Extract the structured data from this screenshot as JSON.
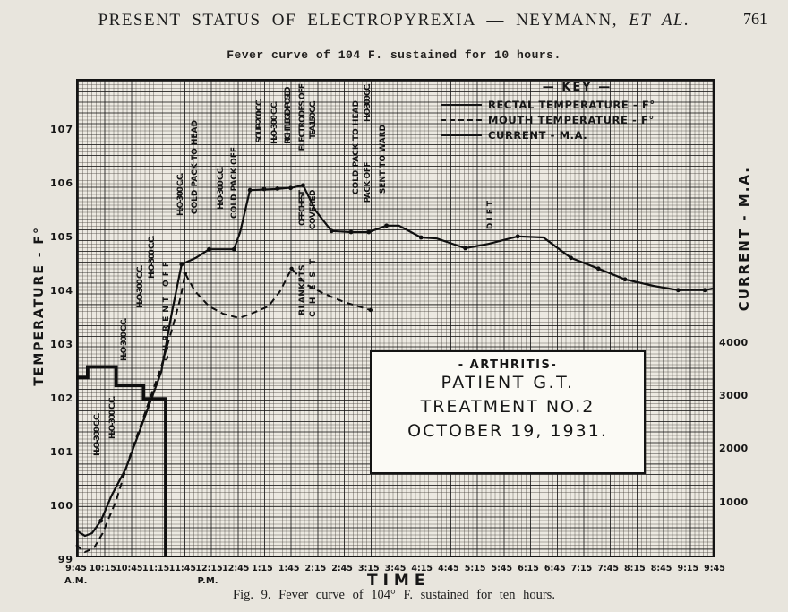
{
  "page": {
    "header_main": "PRESENT STATUS OF ELECTROPYREXIA — NEYMANN, ",
    "header_etal": "ET AL.",
    "page_number": "761",
    "typed_title": "Fever curve of 104 F. sustained for 10 hours.",
    "caption": "Fig. 9.  Fever curve of 104° F. sustained for ten hours."
  },
  "chart_data": {
    "type": "line",
    "title": "Fever curve of 104 F. sustained for 10 hours.",
    "x_axis": {
      "label": "TIME",
      "unit": "minutes after 9:45 A.M.",
      "range": [
        0,
        720
      ]
    },
    "y_axis_left": {
      "label": "TEMPERATURE - F°",
      "range": [
        99,
        107.9
      ]
    },
    "y_axis_right": {
      "label": "CURRENT - M.A.",
      "range": [
        0,
        4500
      ]
    },
    "grid": "fine graph paper, heavy rules every 30 min and 0.2 °F",
    "x_ticks": [
      {
        "t": 0,
        "label": "9:45",
        "sub": "A.M."
      },
      {
        "t": 30,
        "label": "10:15"
      },
      {
        "t": 60,
        "label": "10:45"
      },
      {
        "t": 90,
        "label": "11:15"
      },
      {
        "t": 120,
        "label": "11:45"
      },
      {
        "t": 150,
        "label": "12:15",
        "sub": "P.M."
      },
      {
        "t": 180,
        "label": "12:45"
      },
      {
        "t": 210,
        "label": "1:15"
      },
      {
        "t": 240,
        "label": "1:45"
      },
      {
        "t": 270,
        "label": "2:15"
      },
      {
        "t": 300,
        "label": "2:45"
      },
      {
        "t": 330,
        "label": "3:15"
      },
      {
        "t": 360,
        "label": "3:45"
      },
      {
        "t": 390,
        "label": "4:15"
      },
      {
        "t": 420,
        "label": "4:45"
      },
      {
        "t": 450,
        "label": "5:15"
      },
      {
        "t": 480,
        "label": "5:45"
      },
      {
        "t": 510,
        "label": "6:15"
      },
      {
        "t": 540,
        "label": "6:45"
      },
      {
        "t": 570,
        "label": "7:15"
      },
      {
        "t": 600,
        "label": "7:45"
      },
      {
        "t": 630,
        "label": "8:15"
      },
      {
        "t": 660,
        "label": "8:45"
      },
      {
        "t": 690,
        "label": "9:15"
      },
      {
        "t": 720,
        "label": "9:45"
      }
    ],
    "y_ticks_temp": [
      107,
      106,
      105,
      104,
      103,
      102,
      101,
      100,
      99
    ],
    "y_ticks_current": [
      4000,
      3000,
      2000,
      1000
    ],
    "key": {
      "title": "— KEY —",
      "items": [
        {
          "label": "RECTAL TEMPERATURE - F°",
          "style": "solid"
        },
        {
          "label": "MOUTH TEMPERATURE - F°",
          "style": "dashed"
        },
        {
          "label": "CURRENT - M.A.",
          "style": "thick"
        }
      ]
    },
    "series": [
      {
        "name": "RECTAL TEMPERATURE - F°",
        "axis": "temp",
        "style": "solid",
        "points": [
          [
            0,
            99.55
          ],
          [
            10,
            99.45
          ],
          [
            18,
            99.5
          ],
          [
            28,
            99.73
          ],
          [
            40,
            100.2
          ],
          [
            56,
            100.7
          ],
          [
            76,
            101.6
          ],
          [
            96,
            102.5
          ],
          [
            108,
            103.6
          ],
          [
            119,
            104.5
          ],
          [
            135,
            104.62
          ],
          [
            150,
            104.78
          ],
          [
            178,
            104.78
          ],
          [
            185,
            105.1
          ],
          [
            196,
            105.88
          ],
          [
            225,
            105.9
          ],
          [
            245,
            105.93
          ],
          [
            256,
            105.97
          ],
          [
            270,
            105.5
          ],
          [
            288,
            105.12
          ],
          [
            310,
            105.1
          ],
          [
            330,
            105.1
          ],
          [
            350,
            105.22
          ],
          [
            364,
            105.22
          ],
          [
            389,
            105.0
          ],
          [
            407,
            104.98
          ],
          [
            439,
            104.8
          ],
          [
            465,
            104.88
          ],
          [
            498,
            105.02
          ],
          [
            527,
            105.0
          ],
          [
            558,
            104.62
          ],
          [
            589,
            104.42
          ],
          [
            619,
            104.22
          ],
          [
            651,
            104.1
          ],
          [
            679,
            104.02
          ],
          [
            709,
            104.02
          ],
          [
            718,
            104.05
          ]
        ],
        "markers": [
          [
            28,
            99.73
          ],
          [
            119,
            104.5
          ],
          [
            150,
            104.78
          ],
          [
            178,
            104.78
          ],
          [
            196,
            105.88
          ],
          [
            212,
            105.9
          ],
          [
            227,
            105.91
          ],
          [
            242,
            105.92
          ],
          [
            256,
            105.97
          ],
          [
            288,
            105.12
          ],
          [
            310,
            105.1
          ],
          [
            330,
            105.1
          ],
          [
            350,
            105.22
          ],
          [
            389,
            105.0
          ],
          [
            439,
            104.8
          ],
          [
            498,
            105.02
          ],
          [
            558,
            104.62
          ],
          [
            589,
            104.42
          ],
          [
            619,
            104.22
          ],
          [
            679,
            104.02
          ],
          [
            709,
            104.02
          ]
        ]
      },
      {
        "name": "MOUTH TEMPERATURE - F°",
        "axis": "temp",
        "style": "dashed",
        "points": [
          [
            0,
            99.28
          ],
          [
            10,
            99.15
          ],
          [
            20,
            99.22
          ],
          [
            30,
            99.5
          ],
          [
            45,
            100.1
          ],
          [
            60,
            100.9
          ],
          [
            78,
            101.75
          ],
          [
            96,
            102.6
          ],
          [
            110,
            103.4
          ],
          [
            118,
            103.9
          ],
          [
            123,
            104.33
          ],
          [
            134,
            104.0
          ],
          [
            150,
            103.72
          ],
          [
            166,
            103.58
          ],
          [
            184,
            103.5
          ],
          [
            200,
            103.6
          ],
          [
            217,
            103.72
          ],
          [
            230,
            104.0
          ],
          [
            243,
            104.42
          ],
          [
            260,
            104.12
          ],
          [
            280,
            103.95
          ],
          [
            302,
            103.8
          ],
          [
            318,
            103.72
          ],
          [
            332,
            103.65
          ]
        ],
        "markers": [
          [
            123,
            104.33
          ],
          [
            243,
            104.42
          ],
          [
            332,
            103.65
          ]
        ]
      },
      {
        "name": "CURRENT - M.A.",
        "axis": "current",
        "style": "thick",
        "points": [
          [
            0,
            3350
          ],
          [
            13,
            3350
          ],
          [
            13,
            3550
          ],
          [
            45,
            3550
          ],
          [
            45,
            3200
          ],
          [
            76,
            3200
          ],
          [
            76,
            2950
          ],
          [
            101,
            2950
          ],
          [
            101,
            0
          ]
        ],
        "markers": []
      }
    ],
    "annotations": [
      {
        "text": "H₂O-300 C.C.",
        "x": 110,
        "y": 462,
        "ls": -1.5
      },
      {
        "text": "H₂O-300 C.C.",
        "x": 127,
        "y": 443,
        "ls": -1.5
      },
      {
        "text": "H₂O-300 C.C.",
        "x": 140,
        "y": 356,
        "ls": -1.5
      },
      {
        "text": "H₂O-300 C.C.",
        "x": 158,
        "y": 297,
        "ls": -1.5
      },
      {
        "text": "H₂O-300 C.C.",
        "x": 171,
        "y": 264,
        "ls": -1.5
      },
      {
        "text": "CURRENT OFF",
        "x": 187,
        "y": 288,
        "ls": 4
      },
      {
        "text": "H₂O-300 C.C.",
        "x": 203,
        "y": 194,
        "ls": -1.5
      },
      {
        "text": "COLD PACK TO HEAD",
        "x": 219,
        "y": 134,
        "ls": 0
      },
      {
        "text": "H₂O-300 C.C.",
        "x": 248,
        "y": 187,
        "ls": -1.5
      },
      {
        "text": "COLD PACK OFF",
        "x": 263,
        "y": 164,
        "ls": 0
      },
      {
        "text": "SOUP-200 C.C.",
        "x": 291,
        "y": 112,
        "ls": -2
      },
      {
        "text": "H₂O-300 C.C.",
        "x": 308,
        "y": 114,
        "ls": -1.5
      },
      {
        "text": "RIGHT LEG EXPOSED",
        "x": 323,
        "y": 99,
        "ls": -2.5
      },
      {
        "text": "ELECTRODES OFF",
        "x": 339,
        "y": 94,
        "ls": -1
      },
      {
        "text": "TEA-150 C.C.",
        "x": 351,
        "y": 114,
        "ls": -2
      },
      {
        "text": "OFF CHEST",
        "x": 339,
        "y": 214,
        "ls": -2
      },
      {
        "text": "COVERED",
        "x": 351,
        "y": 212,
        "ls": -0.5
      },
      {
        "text": "BLANKETS",
        "x": 339,
        "y": 295,
        "ls": 0.5
      },
      {
        "text": "CHEST",
        "x": 351,
        "y": 281,
        "ls": 8
      },
      {
        "text": "COLD PACK TO HEAD",
        "x": 399,
        "y": 112,
        "ls": 0
      },
      {
        "text": "H₂O-300 C.C.",
        "x": 412,
        "y": 95,
        "ls": -2
      },
      {
        "text": "PACK OFF",
        "x": 412,
        "y": 181,
        "ls": -0.5
      },
      {
        "text": "SENT TO WARD",
        "x": 429,
        "y": 139,
        "ls": 0
      },
      {
        "text": "DIET",
        "x": 549,
        "y": 221,
        "ls": 3
      }
    ],
    "infobox": {
      "line1": "- ARTHRITIS-",
      "line2": "PATIENT G.T.",
      "line3": "TREATMENT NO.2",
      "line4": "OCTOBER 19, 1931."
    }
  }
}
